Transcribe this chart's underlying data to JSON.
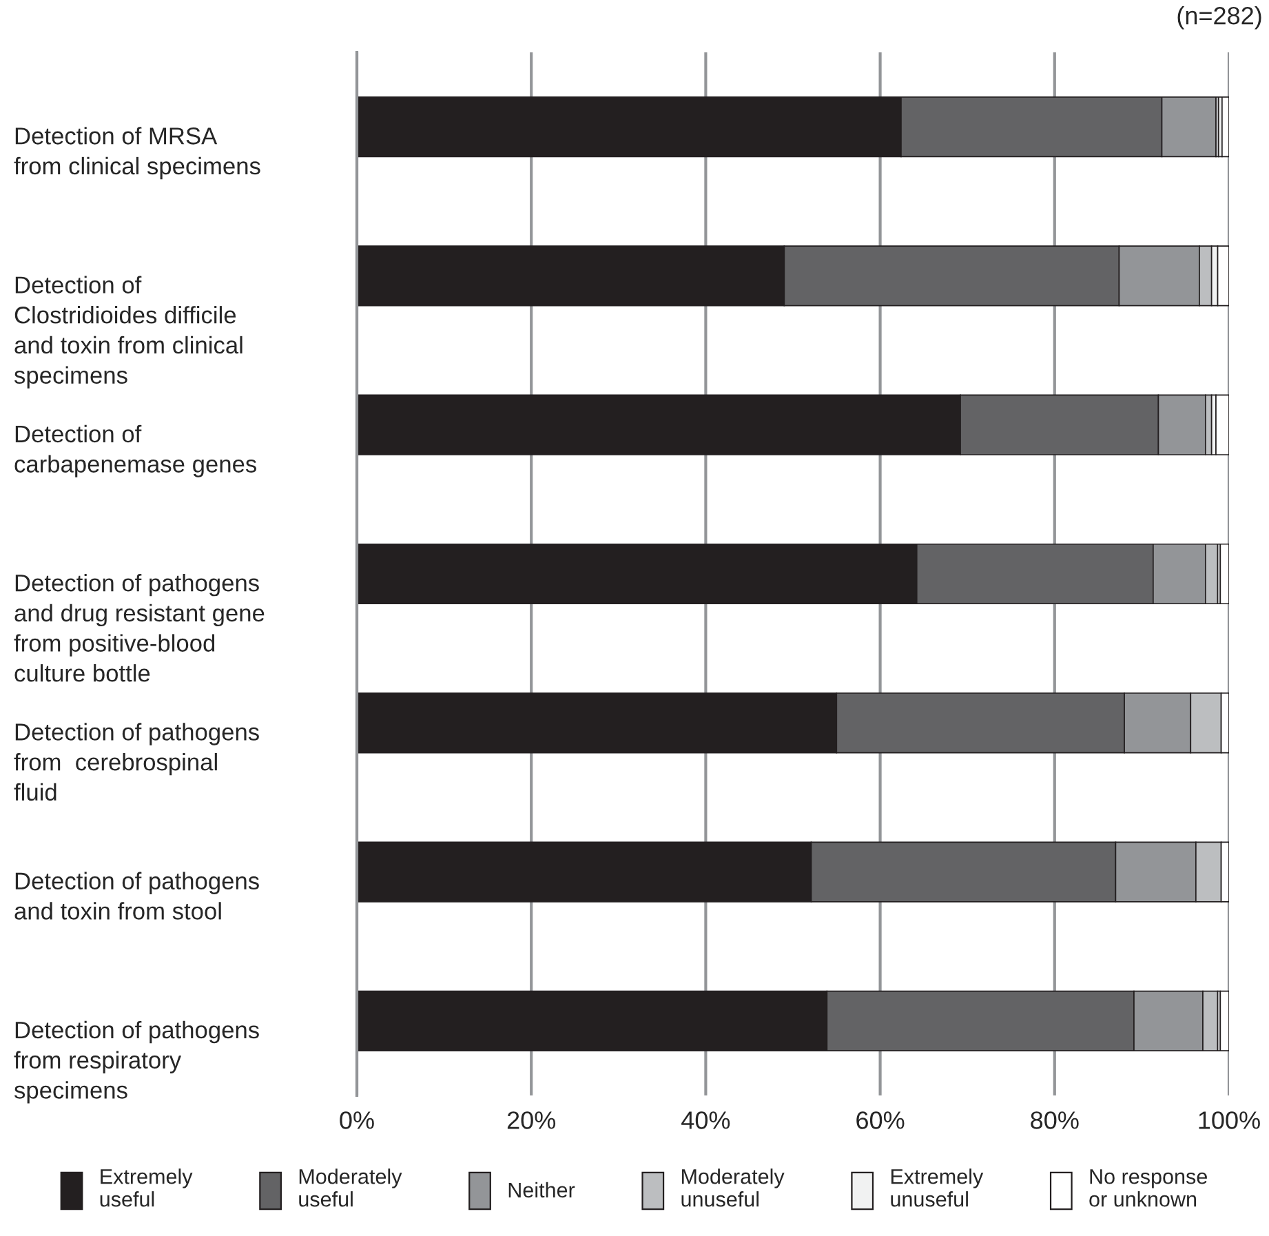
{
  "chart_data": {
    "type": "bar",
    "orientation": "horizontal",
    "stacked": true,
    "categories": [
      "Detection of MRSA\nfrom clinical specimens",
      "Detection of\nClostridioides difficile\nand toxin from clinical\nspecimens",
      "Detection of\ncarbapenemase genes",
      "Detection of pathogens\nand drug resistant gene\nfrom positive-blood\nculture bottle",
      "Detection of pathogens\nfrom  cerebrospinal\nfluid",
      "Detection of pathogens\nand toxin from stool",
      "Detection of pathogens\nfrom respiratory\nspecimens"
    ],
    "series": [
      {
        "name": "Extremely\nuseful",
        "color": "#231f20",
        "values": [
          62.4,
          49.0,
          69.2,
          64.2,
          55.0,
          52.1,
          53.9
        ]
      },
      {
        "name": "Moderately\nuseful",
        "color": "#636365",
        "values": [
          29.9,
          38.4,
          22.7,
          27.1,
          33.0,
          34.9,
          35.2
        ]
      },
      {
        "name": "Neither",
        "color": "#939598",
        "values": [
          6.2,
          9.2,
          5.4,
          6.0,
          7.6,
          9.2,
          7.9
        ]
      },
      {
        "name": "Moderately\nunuseful",
        "color": "#bcbec0",
        "values": [
          0.3,
          1.4,
          0.7,
          1.4,
          3.5,
          2.9,
          1.7
        ]
      },
      {
        "name": "Extremely\nunuseful",
        "color": "#f1f2f2",
        "values": [
          0.4,
          0.7,
          0.5,
          0.3,
          0.0,
          0.0,
          0.3
        ]
      },
      {
        "name": "No response\nor unknown",
        "color": "#ffffff",
        "values": [
          0.8,
          1.3,
          1.5,
          1.0,
          0.9,
          0.9,
          1.0
        ]
      }
    ],
    "xlim": [
      0,
      100
    ],
    "xticks": [
      {
        "value": 0,
        "label": "0%"
      },
      {
        "value": 20,
        "label": "20%"
      },
      {
        "value": 40,
        "label": "40%"
      },
      {
        "value": 60,
        "label": "60%"
      },
      {
        "value": 80,
        "label": "80%"
      },
      {
        "value": 100,
        "label": "100%"
      }
    ],
    "grid": "x",
    "legend": "bottom",
    "annotations": [
      "(n=282)"
    ]
  }
}
